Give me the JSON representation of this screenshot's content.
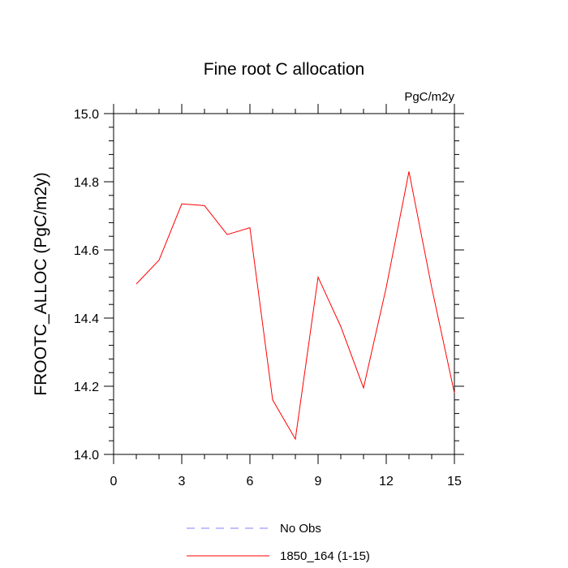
{
  "chart_data": {
    "type": "line",
    "title": "Fine root C allocation",
    "units_label": "PgC/m2y",
    "xlabel": "",
    "ylabel": "FROOTC_ALLOC  (PgC/m2y)",
    "xlim": [
      0,
      15
    ],
    "ylim": [
      14.0,
      15.0
    ],
    "x_ticks": [
      0,
      3,
      6,
      9,
      12,
      15
    ],
    "x_tick_labels": [
      "0",
      "3",
      "6",
      "9",
      "12",
      "15"
    ],
    "y_ticks": [
      14.0,
      14.2,
      14.4,
      14.6,
      14.8,
      15.0
    ],
    "y_tick_labels": [
      "14.0",
      "14.2",
      "14.4",
      "14.6",
      "14.8",
      "15.0"
    ],
    "grid": false,
    "legend_position": "bottom",
    "series": [
      {
        "name": "No Obs",
        "color": "#8080ff",
        "dash": "dashed",
        "x": [],
        "y": []
      },
      {
        "name": "1850_164 (1-15)",
        "color": "#ff0000",
        "dash": "solid",
        "x": [
          1,
          2,
          3,
          4,
          5,
          6,
          7,
          8,
          9,
          10,
          11,
          12,
          13,
          14,
          15
        ],
        "y": [
          14.5,
          14.57,
          14.735,
          14.73,
          14.645,
          14.665,
          14.16,
          14.045,
          14.52,
          14.375,
          14.195,
          14.49,
          14.83,
          14.49,
          14.18
        ]
      }
    ]
  }
}
